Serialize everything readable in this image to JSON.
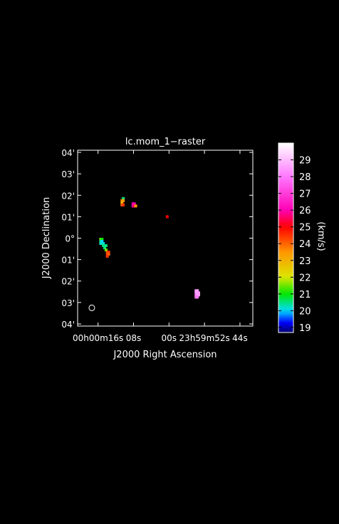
{
  "chart_data": {
    "type": "heatmap",
    "title": "lc.mom_1−raster",
    "xlabel": "J2000 Right Ascension",
    "ylabel": "J2000 Declination",
    "colorbar_label": "(km/s)",
    "x_ticks": [
      {
        "sec": 16,
        "label": "00h00m16s"
      },
      {
        "sec": 8,
        "label": "08s"
      },
      {
        "sec": 0,
        "label": "00s"
      },
      {
        "sec": -8,
        "label": "23h59m52s"
      },
      {
        "sec": -16,
        "label": "44s"
      }
    ],
    "x_range_sec": [
      20.6,
      -18.9
    ],
    "y_ticks": [
      {
        "arcmin": 4,
        "label": "04'"
      },
      {
        "arcmin": 3,
        "label": "03'"
      },
      {
        "arcmin": 2,
        "label": "02'"
      },
      {
        "arcmin": 1,
        "label": "01'"
      },
      {
        "arcmin": 0,
        "label": "0°"
      },
      {
        "arcmin": -1,
        "label": "01'"
      },
      {
        "arcmin": -2,
        "label": "02'"
      },
      {
        "arcmin": -3,
        "label": "03'"
      },
      {
        "arcmin": -4,
        "label": "04'"
      }
    ],
    "y_range_arcmin": [
      -4.1,
      4.1
    ],
    "colorbar": {
      "min": 18.7,
      "max": 30.0,
      "ticks": [
        19,
        20,
        21,
        22,
        23,
        24,
        25,
        26,
        27,
        28,
        29
      ]
    },
    "pixels": [
      {
        "ra": 10.3,
        "dec": 1.85,
        "v": 20.5
      },
      {
        "ra": 10.6,
        "dec": 1.75,
        "v": 23.5
      },
      {
        "ra": 10.3,
        "dec": 1.75,
        "v": 23.5
      },
      {
        "ra": 10.6,
        "dec": 1.65,
        "v": 23.0
      },
      {
        "ra": 10.6,
        "dec": 1.55,
        "v": 24.0
      },
      {
        "ra": 10.3,
        "dec": 1.55,
        "v": 24.5
      },
      {
        "ra": 8.1,
        "dec": 1.6,
        "v": 26.0
      },
      {
        "ra": 7.8,
        "dec": 1.6,
        "v": 26.0
      },
      {
        "ra": 8.1,
        "dec": 1.5,
        "v": 26.0
      },
      {
        "ra": 7.8,
        "dec": 1.5,
        "v": 25.5
      },
      {
        "ra": 7.5,
        "dec": 1.5,
        "v": 23.5
      },
      {
        "ra": 0.4,
        "dec": 1.0,
        "v": 25.0
      },
      {
        "ra": 15.4,
        "dec": -0.05,
        "v": 21.5
      },
      {
        "ra": 15.1,
        "dec": -0.05,
        "v": 21.0
      },
      {
        "ra": 15.4,
        "dec": -0.15,
        "v": 20.5
      },
      {
        "ra": 15.1,
        "dec": -0.15,
        "v": 20.0
      },
      {
        "ra": 15.4,
        "dec": -0.25,
        "v": 20.2
      },
      {
        "ra": 14.8,
        "dec": -0.25,
        "v": 20.0
      },
      {
        "ra": 15.1,
        "dec": -0.25,
        "v": 20.2
      },
      {
        "ra": 14.5,
        "dec": -0.35,
        "v": 20.3
      },
      {
        "ra": 14.8,
        "dec": -0.35,
        "v": 20.5
      },
      {
        "ra": 14.2,
        "dec": -0.35,
        "v": 20.5
      },
      {
        "ra": 14.5,
        "dec": -0.45,
        "v": 20.5
      },
      {
        "ra": 14.2,
        "dec": -0.55,
        "v": 21.5
      },
      {
        "ra": 13.9,
        "dec": -0.65,
        "v": 24.0
      },
      {
        "ra": 13.6,
        "dec": -0.65,
        "v": 24.5
      },
      {
        "ra": 13.9,
        "dec": -0.75,
        "v": 24.5
      },
      {
        "ra": 13.6,
        "dec": -0.75,
        "v": 24.0
      },
      {
        "ra": 13.9,
        "dec": -0.85,
        "v": 24.5
      },
      {
        "ra": -6.1,
        "dec": -2.45,
        "v": 28.5
      },
      {
        "ra": -6.4,
        "dec": -2.45,
        "v": 28.5
      },
      {
        "ra": -6.1,
        "dec": -2.55,
        "v": 28.5
      },
      {
        "ra": -6.4,
        "dec": -2.55,
        "v": 28.5
      },
      {
        "ra": -6.7,
        "dec": -2.55,
        "v": 28.5
      },
      {
        "ra": -6.1,
        "dec": -2.65,
        "v": 28.0
      },
      {
        "ra": -6.4,
        "dec": -2.65,
        "v": 28.5
      },
      {
        "ra": -6.7,
        "dec": -2.65,
        "v": 28.5
      },
      {
        "ra": -6.1,
        "dec": -2.75,
        "v": 28.0
      },
      {
        "ra": -6.4,
        "dec": -2.75,
        "v": 28.0
      }
    ],
    "beam": {
      "ra": 17.4,
      "dec": -3.25
    },
    "grid": false,
    "legend": "colorbar-right"
  }
}
